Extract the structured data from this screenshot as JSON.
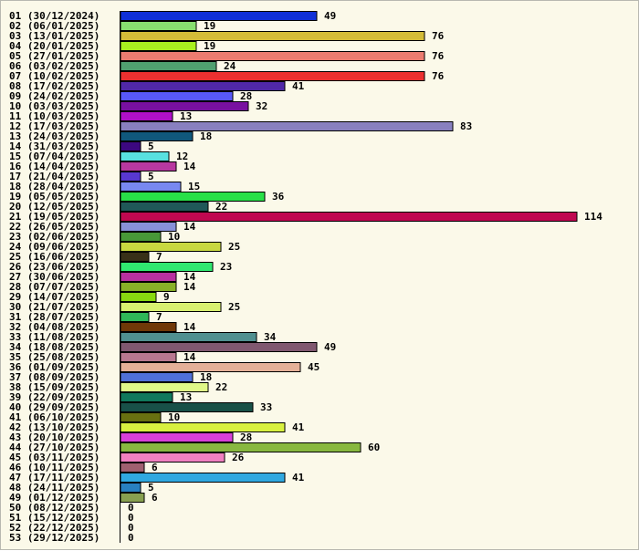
{
  "chart_data": {
    "type": "bar",
    "orientation": "horizontal",
    "title": "",
    "xlabel": "",
    "ylabel": "",
    "xlim": [
      0,
      114
    ],
    "grid": false,
    "legend": "none",
    "categories": [
      "01 (30/12/2024)",
      "02 (06/01/2025)",
      "03 (13/01/2025)",
      "04 (20/01/2025)",
      "05 (27/01/2025)",
      "06 (03/02/2025)",
      "07 (10/02/2025)",
      "08 (17/02/2025)",
      "09 (24/02/2025)",
      "10 (03/03/2025)",
      "11 (10/03/2025)",
      "12 (17/03/2025)",
      "13 (24/03/2025)",
      "14 (31/03/2025)",
      "15 (07/04/2025)",
      "16 (14/04/2025)",
      "17 (21/04/2025)",
      "18 (28/04/2025)",
      "19 (05/05/2025)",
      "20 (12/05/2025)",
      "21 (19/05/2025)",
      "22 (26/05/2025)",
      "23 (02/06/2025)",
      "24 (09/06/2025)",
      "25 (16/06/2025)",
      "26 (23/06/2025)",
      "27 (30/06/2025)",
      "28 (07/07/2025)",
      "29 (14/07/2025)",
      "30 (21/07/2025)",
      "31 (28/07/2025)",
      "32 (04/08/2025)",
      "33 (11/08/2025)",
      "34 (18/08/2025)",
      "35 (25/08/2025)",
      "36 (01/09/2025)",
      "37 (08/09/2025)",
      "38 (15/09/2025)",
      "39 (22/09/2025)",
      "40 (29/09/2025)",
      "41 (06/10/2025)",
      "42 (13/10/2025)",
      "43 (20/10/2025)",
      "44 (27/10/2025)",
      "45 (03/11/2025)",
      "46 (10/11/2025)",
      "47 (17/11/2025)",
      "48 (24/11/2025)",
      "49 (01/12/2025)",
      "50 (08/12/2025)",
      "51 (15/12/2025)",
      "52 (22/12/2025)",
      "53 (29/12/2025)"
    ],
    "values": [
      49,
      19,
      76,
      19,
      76,
      24,
      76,
      41,
      28,
      32,
      13,
      83,
      18,
      5,
      12,
      14,
      5,
      15,
      36,
      22,
      114,
      14,
      10,
      25,
      7,
      23,
      14,
      14,
      9,
      25,
      7,
      14,
      34,
      49,
      14,
      45,
      18,
      22,
      13,
      33,
      10,
      41,
      28,
      60,
      26,
      6,
      41,
      5,
      6,
      0,
      0,
      0,
      0
    ],
    "colors": [
      "#1030d8",
      "#88e070",
      "#d4bc38",
      "#a8f020",
      "#ec7c70",
      "#50a070",
      "#ec3030",
      "#5028a8",
      "#5858f8",
      "#7810a0",
      "#b010c8",
      "#8880c0",
      "#10587c",
      "#3c0880",
      "#58e0e0",
      "#b838a0",
      "#5838d0",
      "#7888f0",
      "#28e048",
      "#205858",
      "#c00850",
      "#8890d8",
      "#489838",
      "#c8d840",
      "#383018",
      "#30e870",
      "#b830a0",
      "#88b028",
      "#88d810",
      "#d8f070",
      "#30b858",
      "#703808",
      "#509090",
      "#805870",
      "#b87890",
      "#e4b098",
      "#5070d8",
      "#e0f888",
      "#10785c",
      "#185048",
      "#687010",
      "#d8f040",
      "#d840d8",
      "#88b840",
      "#f080c0",
      "#a06070",
      "#30a8e0",
      "#2880c0",
      "#88a050",
      "#888888",
      "#888888",
      "#888888",
      "#888888"
    ]
  }
}
